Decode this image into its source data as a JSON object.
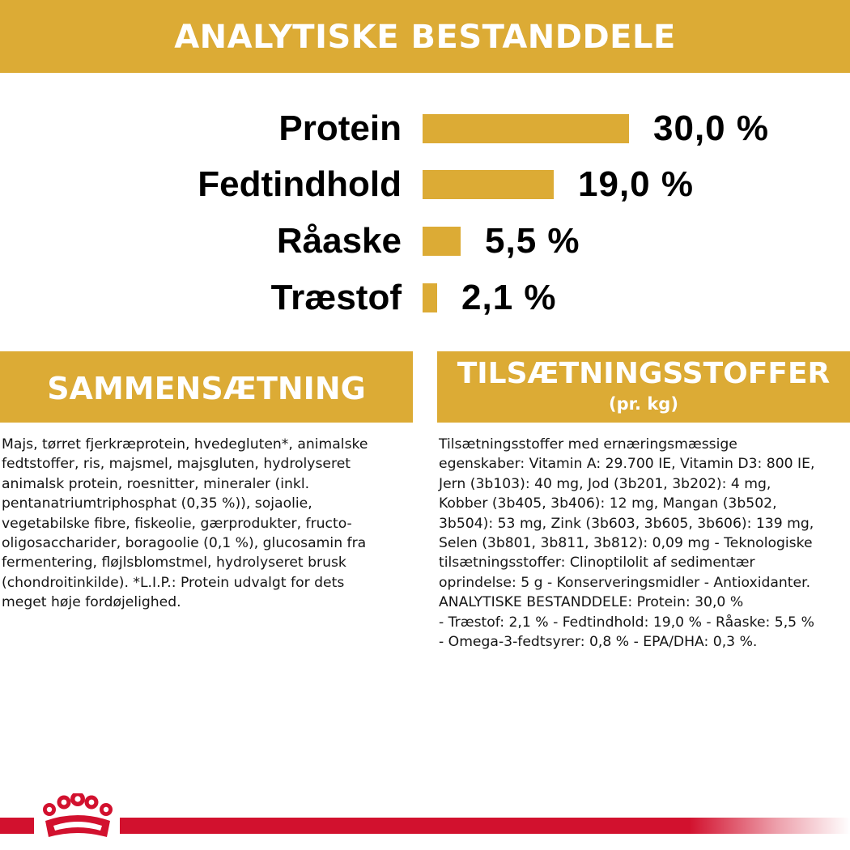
{
  "header": {
    "title": "ANALYTISKE BESTANDDELE"
  },
  "nutrients": [
    {
      "label": "Protein",
      "value": "30,0 %",
      "percent": 30.0
    },
    {
      "label": "Fedtindhold",
      "value": "19,0 %",
      "percent": 19.0
    },
    {
      "label": "Råaske",
      "value": "5,5 %",
      "percent": 5.5
    },
    {
      "label": "Træstof",
      "value": "2,1 %",
      "percent": 2.1
    }
  ],
  "composition": {
    "title": "SAMMENSÆTNING",
    "text": "Majs, tørret fjerkræprotein, hvedegluten*, animalske\nfedtstoffer, ris, majsmel, majsgluten, hydrolyseret\nanimalsk protein, roesnitter, mineraler (inkl.\npentanatriumtriphosphat (0,35 %)), sojaolie,\nvegetabilske fibre, fiskeolie, gærprodukter, fructo-\noligosaccharider, boragoolie (0,1 %), glucosamin fra\nfermentering, fløjlsblomstmel, hydrolyseret brusk\n(chondroitinkilde). *L.I.P.: Protein udvalgt for dets\nmeget høje fordøjelighed."
  },
  "additives": {
    "title": "TILSÆTNINGSSTOFFER",
    "subtitle": "(pr. kg)",
    "text": "Tilsætningsstoffer med ernæringsmæssige\negenskaber: Vitamin A: 29.700 IE, Vitamin D3: 800 IE,\nJern (3b103): 40 mg, Jod (3b201, 3b202): 4 mg,\nKobber (3b405, 3b406): 12 mg, Mangan (3b502,\n3b504): 53 mg, Zink (3b603, 3b605, 3b606): 139 mg,\nSelen (3b801, 3b811, 3b812): 0,09 mg - Teknologiske\ntilsætningsstoffer: Clinoptilolit af sedimentær\noprindelse: 5 g - Konserveringsmidler - Antioxidanter.\nANALYTISKE BESTANDDELE: Protein: 30,0 %\n- Træstof: 2,1 % - Fedtindhold: 19,0 % - Råaske: 5,5 %\n- Omega-3-fedtsyrer: 0,8 % - EPA/DHA: 0,3 %."
  },
  "colors": {
    "accent": "#dcab35",
    "brand_red": "#d2112e"
  },
  "footer": {
    "logo": "crown-icon"
  }
}
